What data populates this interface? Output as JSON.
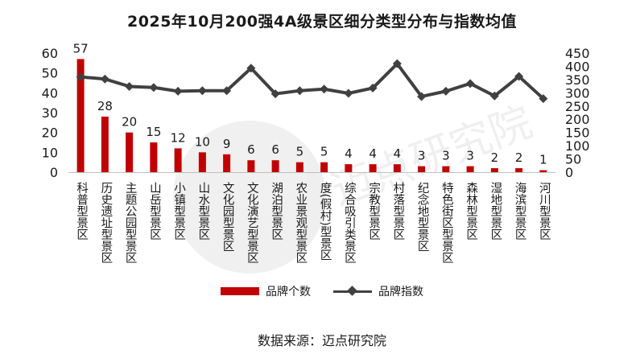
{
  "chart_data": {
    "type": "bar",
    "title": "2025年10月200强4A级景区细分类型分布与指数均值",
    "categories": [
      "科普型景区",
      "历史遗址型景区",
      "主题公园型景区",
      "山岳型景区",
      "小镇型景区",
      "山水型景区",
      "文化园型景区",
      "文化演艺型景区",
      "湖泊型景区",
      "农业景观型景区",
      "度假村型景区",
      "综合吸引类景区",
      "宗教型景区",
      "村落型景区",
      "纪念地型景区",
      "特色街区型景区",
      "森林型景区",
      "湿地型景区",
      "海滨型景区",
      "河川型景区"
    ],
    "category_labels": [
      "科普型景区",
      "历史遗址型景区",
      "主题公园型景区",
      "山岳型景区",
      "小镇型景区",
      "山水型景区",
      "文化园型景区",
      "文化演艺型景区",
      "湖泊型景区",
      "农业景观型景区",
      "度(假村)型景区",
      "综合吸引类景区",
      "宗教型景区",
      "村落型景区",
      "纪念地型景区",
      "特色街区型景区",
      "森林型景区",
      "湿地型景区",
      "海滨型景区",
      "河川型景区"
    ],
    "series": [
      {
        "name": "品牌个数",
        "type": "bar",
        "axis": "left",
        "color": "#c00000",
        "values": [
          57,
          28,
          20,
          15,
          12,
          10,
          9,
          6,
          6,
          5,
          5,
          4,
          4,
          4,
          3,
          3,
          3,
          2,
          2,
          1
        ]
      },
      {
        "name": "品牌指数",
        "type": "line",
        "axis": "right",
        "color": "#404040",
        "values": [
          360,
          352,
          324,
          320,
          306,
          308,
          308,
          393,
          296,
          308,
          314,
          298,
          318,
          410,
          286,
          306,
          335,
          288,
          362,
          278
        ]
      }
    ],
    "y_left": {
      "min": 0,
      "max": 60,
      "ticks": [
        0,
        10,
        20,
        30,
        40,
        50,
        60
      ]
    },
    "y_right": {
      "min": 0,
      "max": 450,
      "ticks": [
        0,
        50,
        100,
        150,
        200,
        250,
        300,
        350,
        400,
        450
      ]
    },
    "grid": false,
    "legend_position": "bottom"
  },
  "source_note": "数据来源：迈点研究院"
}
